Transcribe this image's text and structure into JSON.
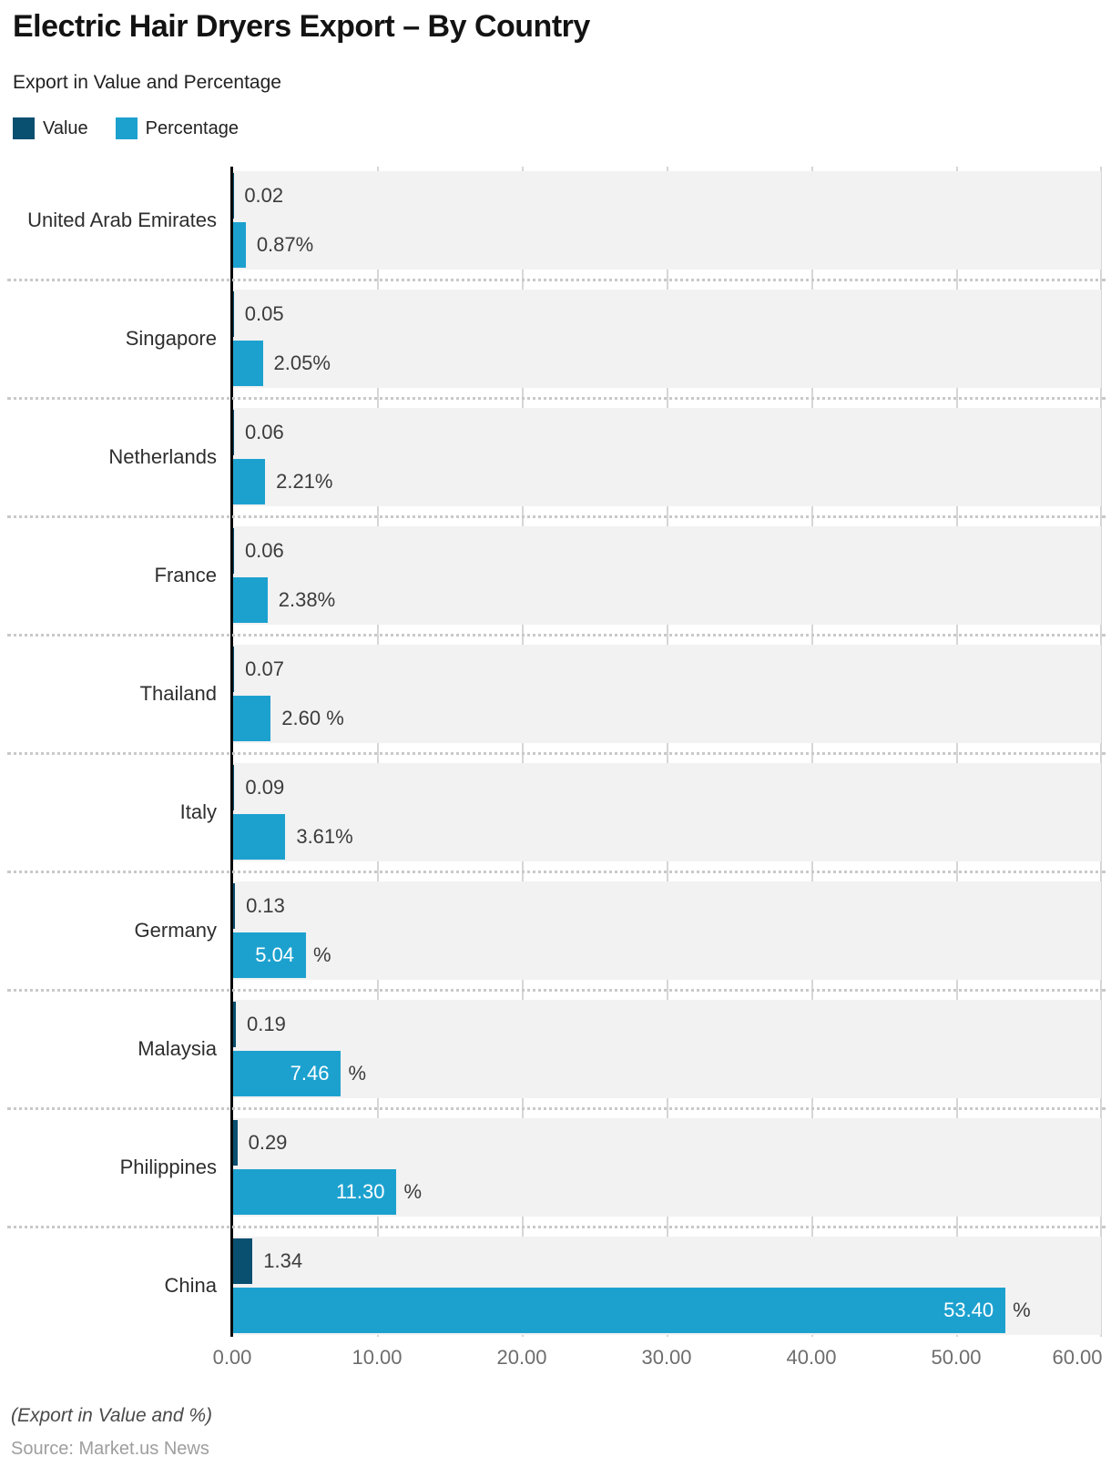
{
  "header": {
    "title": "Electric Hair Dryers Export – By Country",
    "subtitle": "Export in Value and Percentage"
  },
  "legend": {
    "items": [
      {
        "label": "Value",
        "color": "#094f70"
      },
      {
        "label": "Percentage",
        "color": "#1ca1cf"
      }
    ]
  },
  "axis": {
    "ticks": [
      "0.00",
      "10.00",
      "20.00",
      "30.00",
      "40.00",
      "50.00",
      "60.00"
    ]
  },
  "footer": {
    "note": "(Export in Value and %)",
    "source": "Source: Market.us News"
  },
  "chart_data": {
    "type": "bar",
    "orientation": "horizontal",
    "title": "Electric Hair Dryers Export – By Country",
    "subtitle": "Export in Value and Percentage",
    "categories": [
      "United Arab Emirates",
      "Singapore",
      "Netherlands",
      "France",
      "Thailand",
      "Italy",
      "Germany",
      "Malaysia",
      "Philippines",
      "China"
    ],
    "series": [
      {
        "name": "Value",
        "color": "#094f70",
        "values": [
          0.02,
          0.05,
          0.06,
          0.06,
          0.07,
          0.09,
          0.13,
          0.19,
          0.29,
          1.34
        ]
      },
      {
        "name": "Percentage",
        "color": "#1ca1cf",
        "values": [
          0.87,
          2.05,
          2.21,
          2.38,
          2.6,
          3.61,
          5.04,
          7.46,
          11.3,
          53.4
        ]
      }
    ],
    "xlim": [
      0,
      60
    ],
    "grid": "vertical",
    "legend_position": "top",
    "note": "(Export in Value and %)",
    "source": "Source: Market.us News",
    "rows": [
      {
        "country": "United Arab Emirates",
        "value": 0.02,
        "value_label": "0.02",
        "pct": 0.87,
        "pct_label": "0.87%",
        "pct_inside": false
      },
      {
        "country": "Singapore",
        "value": 0.05,
        "value_label": "0.05",
        "pct": 2.05,
        "pct_label": "2.05%",
        "pct_inside": false
      },
      {
        "country": "Netherlands",
        "value": 0.06,
        "value_label": "0.06",
        "pct": 2.21,
        "pct_label": "2.21%",
        "pct_inside": false
      },
      {
        "country": "France",
        "value": 0.06,
        "value_label": "0.06",
        "pct": 2.38,
        "pct_label": "2.38%",
        "pct_inside": false
      },
      {
        "country": "Thailand",
        "value": 0.07,
        "value_label": "0.07",
        "pct": 2.6,
        "pct_label": "2.60 %",
        "pct_inside": false
      },
      {
        "country": "Italy",
        "value": 0.09,
        "value_label": "0.09",
        "pct": 3.61,
        "pct_label": "3.61%",
        "pct_inside": false
      },
      {
        "country": "Germany",
        "value": 0.13,
        "value_label": "0.13",
        "pct": 5.04,
        "pct_label": "5.04",
        "pct_suffix": "%",
        "pct_inside": true
      },
      {
        "country": "Malaysia",
        "value": 0.19,
        "value_label": "0.19",
        "pct": 7.46,
        "pct_label": "7.46",
        "pct_suffix": "%",
        "pct_inside": true
      },
      {
        "country": "Philippines",
        "value": 0.29,
        "value_label": "0.29",
        "pct": 11.3,
        "pct_label": "11.30",
        "pct_suffix": "%",
        "pct_inside": true
      },
      {
        "country": "China",
        "value": 1.34,
        "value_label": "1.34",
        "pct": 53.4,
        "pct_label": "53.40",
        "pct_suffix": "%",
        "pct_inside": true
      }
    ]
  }
}
